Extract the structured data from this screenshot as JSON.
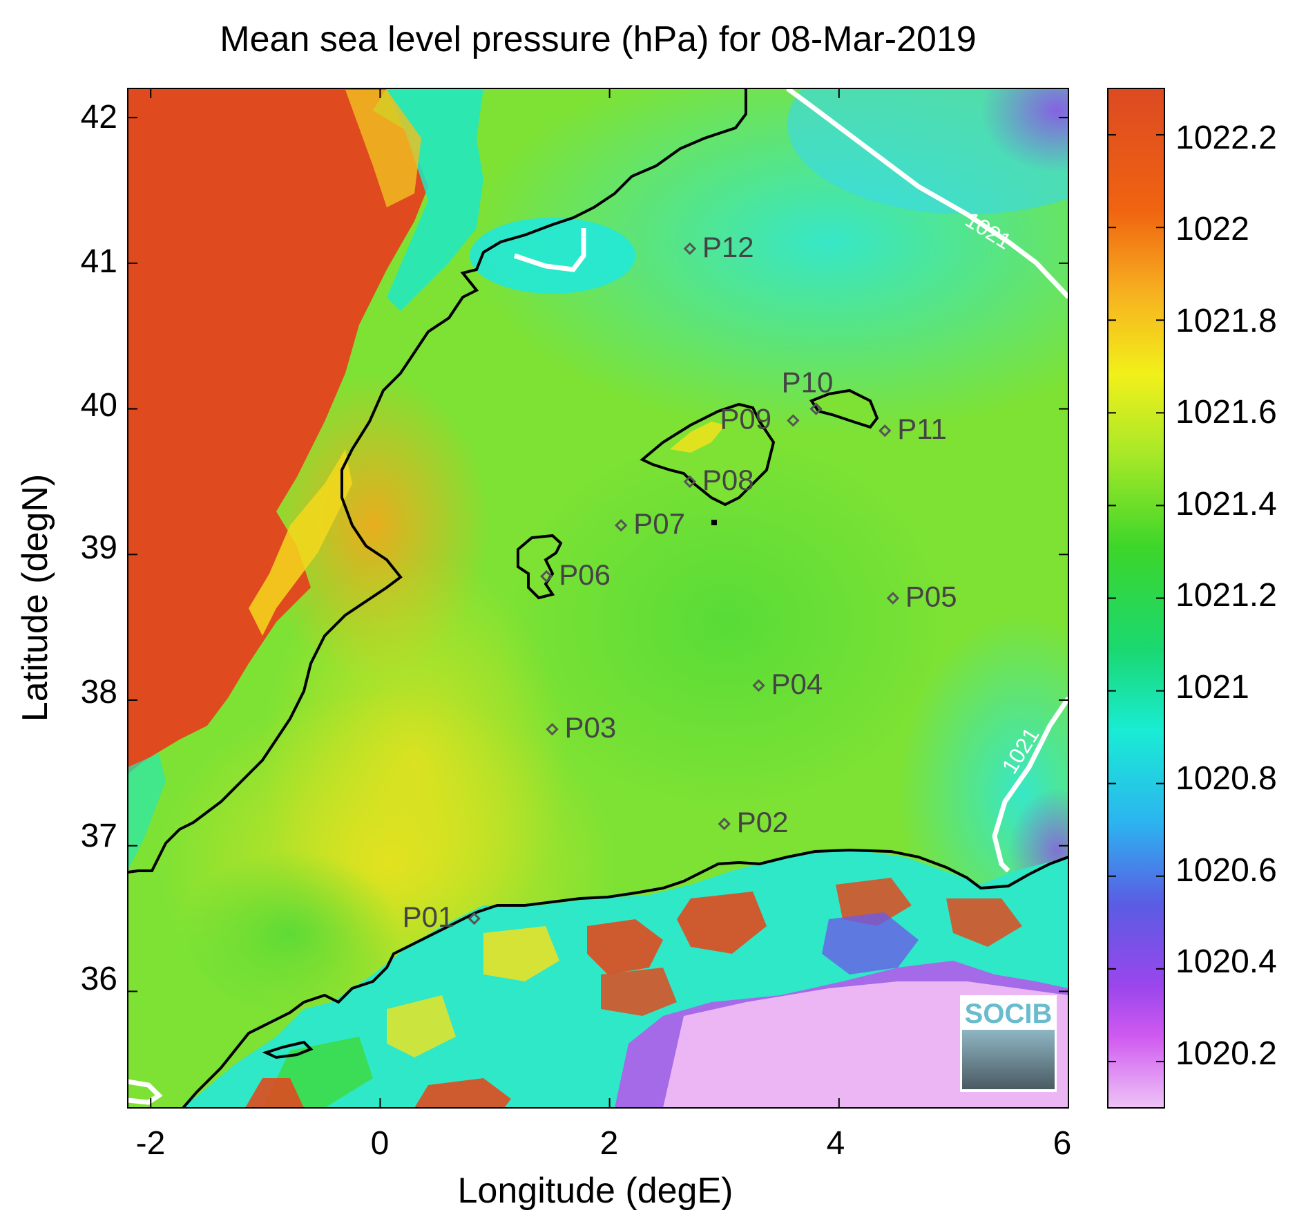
{
  "title": "Mean sea level pressure (hPa) for 08-Mar-2019",
  "xlabel": "Longitude (degE)",
  "ylabel": "Latitude (degN)",
  "x_ticks": [
    "-2",
    "0",
    "2",
    "4",
    "6"
  ],
  "y_ticks": [
    "42",
    "41",
    "40",
    "39",
    "38",
    "37",
    "36"
  ],
  "colorbar_ticks": [
    "1022.2",
    "1022",
    "1021.8",
    "1021.6",
    "1021.4",
    "1021.2",
    "1021",
    "1020.8",
    "1020.6",
    "1020.4",
    "1020.2"
  ],
  "contour_labels": [
    "1021",
    "1021"
  ],
  "logo_text": "SOCIB",
  "colors": {
    "land_high": "#e04a1f",
    "sea_mid": "#7ee234",
    "contour": "#ffffff",
    "coastline": "#000000",
    "station_marker": "#555555"
  },
  "chart_data": {
    "type": "heatmap",
    "variable": "Mean sea level pressure (hPa)",
    "date": "08-Mar-2019",
    "xlim": [
      -2.2,
      6
    ],
    "ylim": [
      35.2,
      42.2
    ],
    "colorbar_range": [
      1020.1,
      1022.3
    ],
    "contour_levels": [
      1021
    ],
    "stations": [
      {
        "name": "P01",
        "lon": 0.82,
        "lat": 36.5
      },
      {
        "name": "P02",
        "lon": 3.0,
        "lat": 37.15
      },
      {
        "name": "P03",
        "lon": 1.5,
        "lat": 37.8
      },
      {
        "name": "P04",
        "lon": 3.3,
        "lat": 38.1
      },
      {
        "name": "P05",
        "lon": 4.47,
        "lat": 38.7
      },
      {
        "name": "P06",
        "lon": 1.45,
        "lat": 38.85
      },
      {
        "name": "P07",
        "lon": 2.1,
        "lat": 39.2
      },
      {
        "name": "P08",
        "lon": 2.7,
        "lat": 39.5
      },
      {
        "name": "P09",
        "lon": 3.6,
        "lat": 39.92
      },
      {
        "name": "P10",
        "lon": 3.8,
        "lat": 40.0
      },
      {
        "name": "P11",
        "lon": 4.4,
        "lat": 39.85
      },
      {
        "name": "P12",
        "lon": 2.7,
        "lat": 41.1
      }
    ]
  }
}
